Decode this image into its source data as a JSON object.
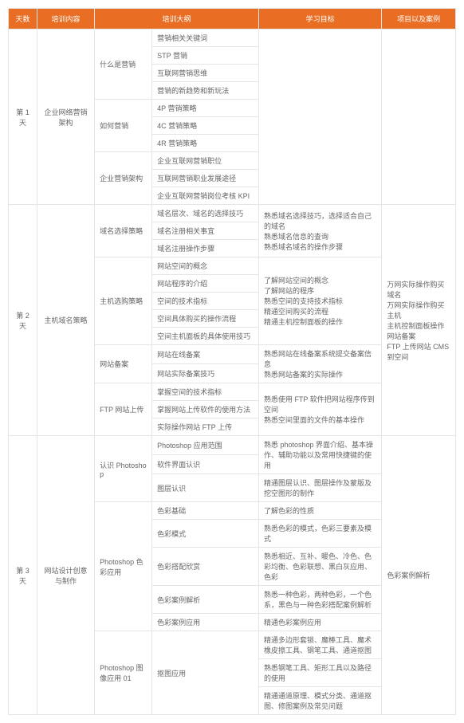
{
  "headers": {
    "day": "天数",
    "content": "培训内容",
    "outline": "培训大纲",
    "goal": "学习目标",
    "case": "项目以及案例"
  },
  "colors": {
    "header_bg": "#ea6d24",
    "header_fg": "#ffffff",
    "border": "#e5e5e5",
    "text": "#666666"
  },
  "days": {
    "d1": {
      "label": "第 1 天",
      "content": "企业网络营销架构"
    },
    "d2": {
      "label": "第 2 天",
      "content": "主机域名策略"
    },
    "d3": {
      "label": "第 3 天",
      "content": "网站设计创意与制作"
    }
  },
  "d1": {
    "s1": {
      "name": "什么是营销",
      "r1": "营销相关关键词",
      "r2": "STP 营销",
      "r3": "互联网营销思维",
      "r4": "营销的新趋势和新玩法"
    },
    "s2": {
      "name": "如何营销",
      "r1": "4P 营销策略",
      "r2": "4C 营销策略",
      "r3": "4R 营销策略"
    },
    "s3": {
      "name": "企业营销架构",
      "r1": "企业互联网营销职位",
      "r2": "互联网营销职业发展途径",
      "r3": "企业互联网营销岗位考核 KPI"
    }
  },
  "d2": {
    "s1": {
      "name": "域名选择策略",
      "r1": "域名层次、域名的选择技巧",
      "r2": "域名注册相关事宜",
      "r3": "域名注册操作步骤",
      "goal": "熟悉域名选择技巧，选择适合自己的域名\n熟悉域名信息的查询\n熟悉域名域名的操作步骤"
    },
    "s2": {
      "name": "主机选购策略",
      "r1": "网站空间的概念",
      "r2": "网站程序的介绍",
      "r3": "空间的技术指标",
      "r4": "空间具体购买的操作流程",
      "r5": "空间主机面板的具体使用技巧",
      "goal": "了解网站空间的概念\n了解网站的程序\n熟悉空间的支持技术指标\n精通空间购买的流程\n精通主机控制面板的操作"
    },
    "s3": {
      "name": "网站备案",
      "r1": "网站在线备案",
      "r2": "网站实际备案技巧",
      "goal": "熟悉网站在线备案系统提交备案信息\n熟悉网站备案的实际操作"
    },
    "s4": {
      "name": "FTP 网站上传",
      "r1": "掌握空间的技术指标",
      "r2": "掌握网站上传软件的使用方法",
      "r3": "实际操作网站 FTP 上传",
      "goal": "熟悉使用 FTP 软件把网站程序传到空间\n熟悉空间里面的文件的基本操作"
    },
    "case": "万网实际操作购买域名\n万网实际操作购买主机\n主机控制面板操作\n网站备案\nFTP 上传网站 CMS 到空间"
  },
  "d3": {
    "s1": {
      "name": "认识 Photoshop",
      "r1": "Photoshop 应用范围",
      "r2": "软件界面认识",
      "r3": "图层认识",
      "g1": "熟悉 photoshop 界面介绍、基本操作、辅助功能以及常用快捷键的使用",
      "g2": "精通图层认识、图层操作及蒙版及挖空图形的制作"
    },
    "s2": {
      "name": "Photoshop 色彩应用",
      "r1": "色彩基础",
      "r2": "色彩模式",
      "r3": "色彩搭配欣赏",
      "r4": "色彩案例解析",
      "r5": "色彩案例应用",
      "g1": "了解色彩的性质",
      "g2": "熟悉色彩的模式，色彩三要素及模式",
      "g3": "熟悉相近、互补、暖色、冷色、色彩均衡、色彩联想、黑白灰应用、色彩",
      "g4": "熟悉一种色彩，两种色彩，一个色系，黑色与一种色彩搭配案例解析",
      "g5": "精通色彩案例应用"
    },
    "s3": {
      "name": "Photoshop 图像应用 01",
      "r1": "抠图应用",
      "g1": "精通多边形套锁、魔棒工具、魔术橡皮擦工具、钢笔工具、通道抠图",
      "g2": "熟悉钢笔工具、矩形工具以及路径的使用",
      "g3": "精通通道原理、模式分类、通道抠图、修图案例及常见问题"
    },
    "case": "色彩案例解析"
  }
}
